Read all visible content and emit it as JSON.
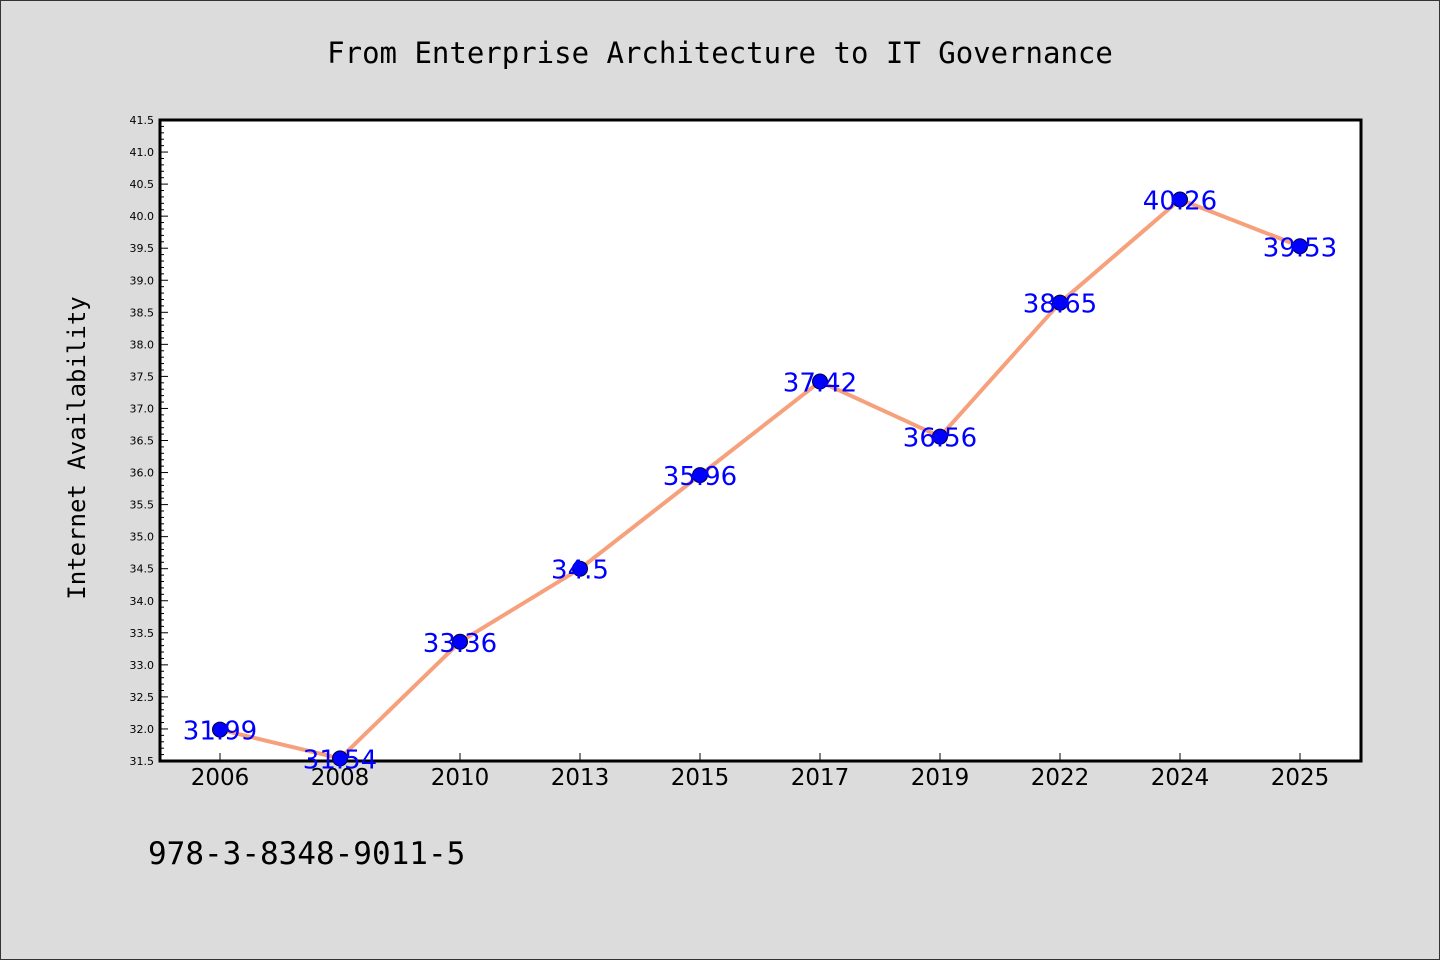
{
  "footer_text": "978-3-8348-9011-5",
  "colors": {
    "background": "#dcdcdc",
    "plot_background": "#ffffff",
    "line": "#f7a07c",
    "marker": "#0000ff",
    "data_label": "#0000ff",
    "axis": "#000000"
  },
  "chart_data": {
    "type": "line",
    "title": "From Enterprise Architecture to IT Governance",
    "xlabel": "",
    "ylabel": "Internet Availability",
    "categories": [
      "2006",
      "2008",
      "2010",
      "2013",
      "2015",
      "2017",
      "2019",
      "2022",
      "2024",
      "2025"
    ],
    "series": [
      {
        "values": [
          31.99,
          31.54,
          33.36,
          34.5,
          35.96,
          37.42,
          36.56,
          38.65,
          40.26,
          39.53
        ],
        "labels": [
          "31.99",
          "31.54",
          "33.36",
          "34.5",
          "35.96",
          "37.42",
          "36.56",
          "38.65",
          "40.26",
          "39.53"
        ]
      }
    ],
    "ylim": [
      31.5,
      41.5
    ],
    "y_ticks": [
      "31.5",
      "32.0",
      "32.5",
      "33.0",
      "33.5",
      "34.0",
      "34.5",
      "35.0",
      "35.5",
      "36.0",
      "36.5",
      "37.0",
      "37.5",
      "38.0",
      "38.5",
      "39.0",
      "39.5",
      "40.0",
      "40.5",
      "41.0",
      "41.5"
    ],
    "grid": false,
    "legend": "none"
  }
}
